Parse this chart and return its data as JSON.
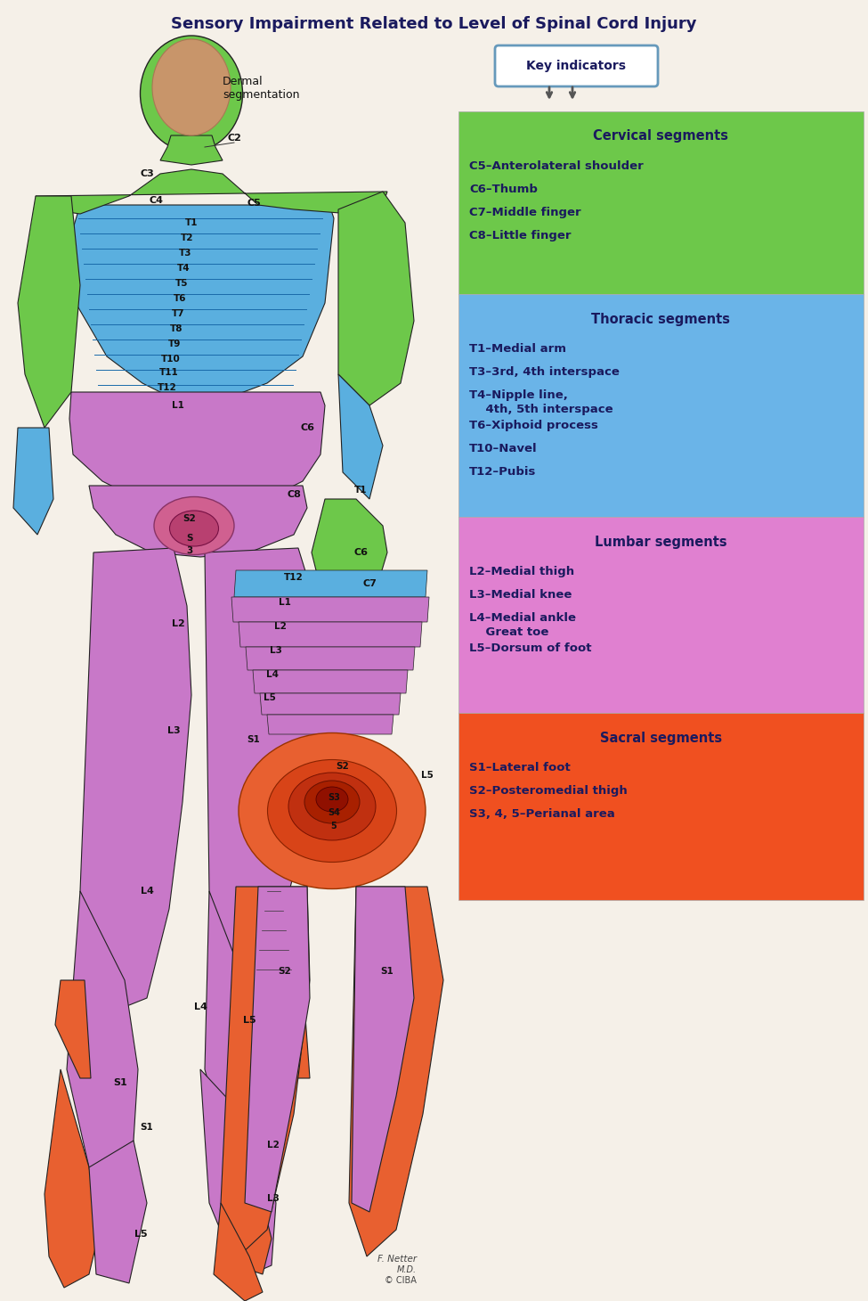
{
  "title": "Sensory Impairment Related to Level of Spinal Cord Injury",
  "title_fontsize": 13,
  "bg_color": "#f5f0e8",
  "key_box_title": "Key indicators",
  "segments": [
    {
      "name": "Cervical segments",
      "color": "#6dc84a",
      "text_color": "#1a1a5e",
      "items": [
        "C5–Anterolateral shoulder",
        "C6–Thumb",
        "C7–Middle finger",
        "C8–Little finger"
      ]
    },
    {
      "name": "Thoracic segments",
      "color": "#6ab4e8",
      "text_color": "#1a1a5e",
      "items": [
        "T1–Medial arm",
        "T3–3rd, 4th interspace",
        "T4–Nipple line,\n    4th, 5th interspace",
        "T6–Xiphoid process",
        "T10–Navel",
        "T12–Pubis"
      ]
    },
    {
      "name": "Lumbar segments",
      "color": "#e080d0",
      "text_color": "#1a1a5e",
      "items": [
        "L2–Medial thigh",
        "L3–Medial knee",
        "L4–Medial ankle\n    Great toe",
        "L5–Dorsum of foot"
      ]
    },
    {
      "name": "Sacral segments",
      "color": "#f05020",
      "text_color": "#1a1a5e",
      "items": [
        "S1–Lateral foot",
        "S2–Posteromedial thigh",
        "S3, 4, 5–Perianal area"
      ]
    }
  ],
  "cervical_color": "#6dc84a",
  "thoracic_color": "#5aafdf",
  "lumbar_color": "#c878c8",
  "sacral_color": "#e86030",
  "skin_color": "#c8956a",
  "text_dark": "#1a1a5e",
  "item_fontsize": 9.5,
  "header_fontsize": 10.5
}
